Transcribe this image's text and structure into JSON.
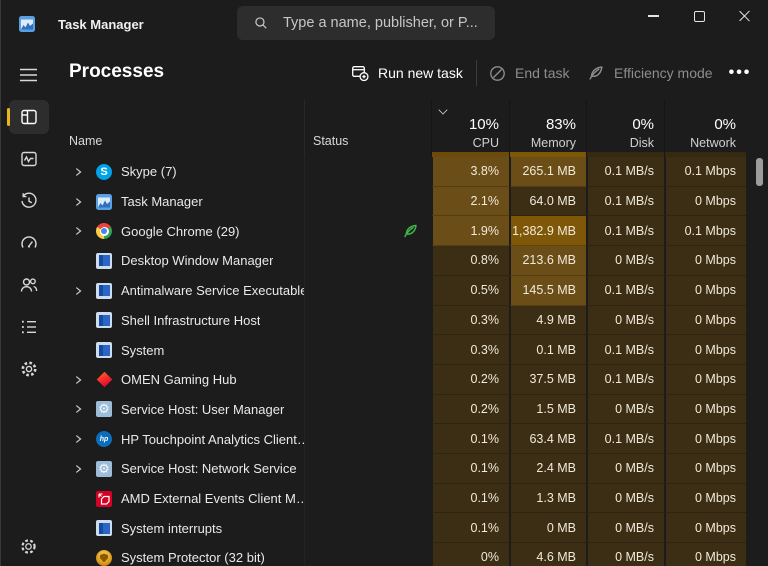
{
  "window": {
    "title": "Task Manager"
  },
  "search": {
    "placeholder": "Type a name, publisher, or P..."
  },
  "page": {
    "title": "Processes"
  },
  "toolbar": {
    "run_new_task": "Run new task",
    "end_task": "End task",
    "efficiency_mode": "Efficiency mode"
  },
  "sidebar": {
    "items": [
      {
        "icon": "menu-icon",
        "selected": false
      },
      {
        "icon": "processes-icon",
        "selected": true
      },
      {
        "icon": "performance-icon",
        "selected": false
      },
      {
        "icon": "app-history-icon",
        "selected": false
      },
      {
        "icon": "startup-apps-icon",
        "selected": false
      },
      {
        "icon": "users-icon",
        "selected": false
      },
      {
        "icon": "details-icon",
        "selected": false
      },
      {
        "icon": "services-icon",
        "selected": false
      }
    ],
    "bottom": {
      "icon": "settings-icon"
    }
  },
  "colors": {
    "accent": "#e9b61c",
    "heat_low": "#3b2e15",
    "heat_med": "#6b4d18",
    "heat_high": "#7e5708",
    "leaf_green": "#41b64b"
  },
  "table": {
    "columns": [
      {
        "label": "Name"
      },
      {
        "label": "Status"
      },
      {
        "label": "CPU",
        "total": "10%",
        "sorted": true
      },
      {
        "label": "Memory",
        "total": "83%"
      },
      {
        "label": "Disk",
        "total": "0%"
      },
      {
        "label": "Network",
        "total": "0%"
      }
    ],
    "rows": [
      {
        "name": "Skype (7)",
        "icon": "skype-icon",
        "expandable": true,
        "status": "",
        "cpu": "3.8%",
        "memory": "265.1 MB",
        "disk": "0.1 MB/s",
        "network": "0.1 Mbps",
        "heat": {
          "cpu": "med",
          "memory": "med",
          "disk": "low",
          "network": "low"
        }
      },
      {
        "name": "Task Manager",
        "icon": "task-manager-icon",
        "expandable": true,
        "status": "",
        "cpu": "2.1%",
        "memory": "64.0 MB",
        "disk": "0.1 MB/s",
        "network": "0 Mbps",
        "heat": {
          "cpu": "med",
          "memory": "low",
          "disk": "low",
          "network": "low"
        }
      },
      {
        "name": "Google Chrome (29)",
        "icon": "chrome-icon",
        "expandable": true,
        "status": "efficiency-leaf",
        "cpu": "1.9%",
        "memory": "1,382.9 MB",
        "disk": "0.1 MB/s",
        "network": "0.1 Mbps",
        "heat": {
          "cpu": "med",
          "memory": "high",
          "disk": "low",
          "network": "low"
        }
      },
      {
        "name": "Desktop Window Manager",
        "icon": "window-icon",
        "expandable": false,
        "status": "",
        "cpu": "0.8%",
        "memory": "213.6 MB",
        "disk": "0 MB/s",
        "network": "0 Mbps",
        "heat": {
          "cpu": "low",
          "memory": "med",
          "disk": "low",
          "network": "low"
        }
      },
      {
        "name": "Antimalware Service Executable",
        "icon": "window-icon",
        "expandable": true,
        "status": "",
        "cpu": "0.5%",
        "memory": "145.5 MB",
        "disk": "0.1 MB/s",
        "network": "0 Mbps",
        "heat": {
          "cpu": "low",
          "memory": "med",
          "disk": "low",
          "network": "low"
        }
      },
      {
        "name": "Shell Infrastructure Host",
        "icon": "window-icon",
        "expandable": false,
        "status": "",
        "cpu": "0.3%",
        "memory": "4.9 MB",
        "disk": "0 MB/s",
        "network": "0 Mbps",
        "heat": {
          "cpu": "low",
          "memory": "low",
          "disk": "low",
          "network": "low"
        }
      },
      {
        "name": "System",
        "icon": "window-icon",
        "expandable": false,
        "status": "",
        "cpu": "0.3%",
        "memory": "0.1 MB",
        "disk": "0.1 MB/s",
        "network": "0 Mbps",
        "heat": {
          "cpu": "low",
          "memory": "low",
          "disk": "low",
          "network": "low"
        }
      },
      {
        "name": "OMEN Gaming Hub",
        "icon": "omen-icon",
        "expandable": true,
        "status": "",
        "cpu": "0.2%",
        "memory": "37.5 MB",
        "disk": "0.1 MB/s",
        "network": "0 Mbps",
        "heat": {
          "cpu": "low",
          "memory": "low",
          "disk": "low",
          "network": "low"
        }
      },
      {
        "name": "Service Host: User Manager",
        "icon": "service-gear-icon",
        "expandable": true,
        "status": "",
        "cpu": "0.2%",
        "memory": "1.5 MB",
        "disk": "0 MB/s",
        "network": "0 Mbps",
        "heat": {
          "cpu": "low",
          "memory": "low",
          "disk": "low",
          "network": "low"
        }
      },
      {
        "name": "HP Touchpoint Analytics Client…",
        "icon": "hp-icon",
        "expandable": true,
        "status": "",
        "cpu": "0.1%",
        "memory": "63.4 MB",
        "disk": "0.1 MB/s",
        "network": "0 Mbps",
        "heat": {
          "cpu": "low",
          "memory": "low",
          "disk": "low",
          "network": "low"
        }
      },
      {
        "name": "Service Host: Network Service",
        "icon": "service-gear-icon",
        "expandable": true,
        "status": "",
        "cpu": "0.1%",
        "memory": "2.4 MB",
        "disk": "0 MB/s",
        "network": "0 Mbps",
        "heat": {
          "cpu": "low",
          "memory": "low",
          "disk": "low",
          "network": "low"
        }
      },
      {
        "name": "AMD External Events Client M…",
        "icon": "amd-icon",
        "expandable": false,
        "status": "",
        "cpu": "0.1%",
        "memory": "1.3 MB",
        "disk": "0 MB/s",
        "network": "0 Mbps",
        "heat": {
          "cpu": "low",
          "memory": "low",
          "disk": "low",
          "network": "low"
        }
      },
      {
        "name": "System interrupts",
        "icon": "window-icon",
        "expandable": false,
        "status": "",
        "cpu": "0.1%",
        "memory": "0 MB",
        "disk": "0 MB/s",
        "network": "0 Mbps",
        "heat": {
          "cpu": "low",
          "memory": "low",
          "disk": "low",
          "network": "low"
        }
      },
      {
        "name": "System Protector (32 bit)",
        "icon": "shield-icon",
        "expandable": false,
        "status": "",
        "cpu": "0%",
        "memory": "4.6 MB",
        "disk": "0 MB/s",
        "network": "0 Mbps",
        "heat": {
          "cpu": "low",
          "memory": "low",
          "disk": "low",
          "network": "low"
        }
      }
    ]
  }
}
